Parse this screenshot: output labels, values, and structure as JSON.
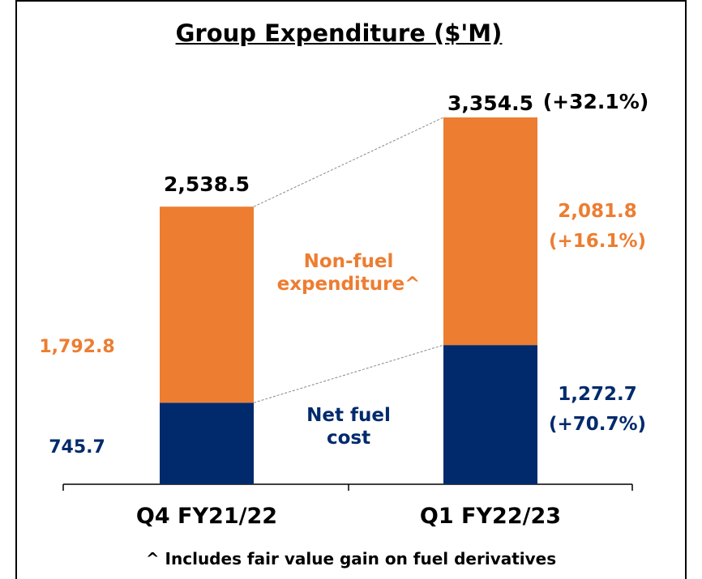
{
  "chart_data": {
    "type": "stacked_bar",
    "title": "Group Expenditure ($'M)",
    "categories": [
      "Q4 FY21/22",
      "Q1 FY22/23"
    ],
    "series": [
      {
        "name": "Net fuel cost",
        "color": "#002a6c",
        "values": [
          745.7,
          1272.7
        ],
        "value_labels": [
          "745.7",
          "1,272.7"
        ],
        "change": "(+70.7%)"
      },
      {
        "name": "Non-fuel expenditure^",
        "color": "#ed7d31",
        "values": [
          1792.8,
          2081.8
        ],
        "value_labels": [
          "1,792.8",
          "2,081.8"
        ],
        "change": "(+16.1%)"
      }
    ],
    "totals": {
      "values": [
        2538.5,
        3354.5
      ],
      "value_labels": [
        "2,538.5",
        "3,354.5"
      ],
      "change": "(+32.1%)"
    },
    "footnote": "^ Includes fair value gain on fuel derivatives"
  }
}
